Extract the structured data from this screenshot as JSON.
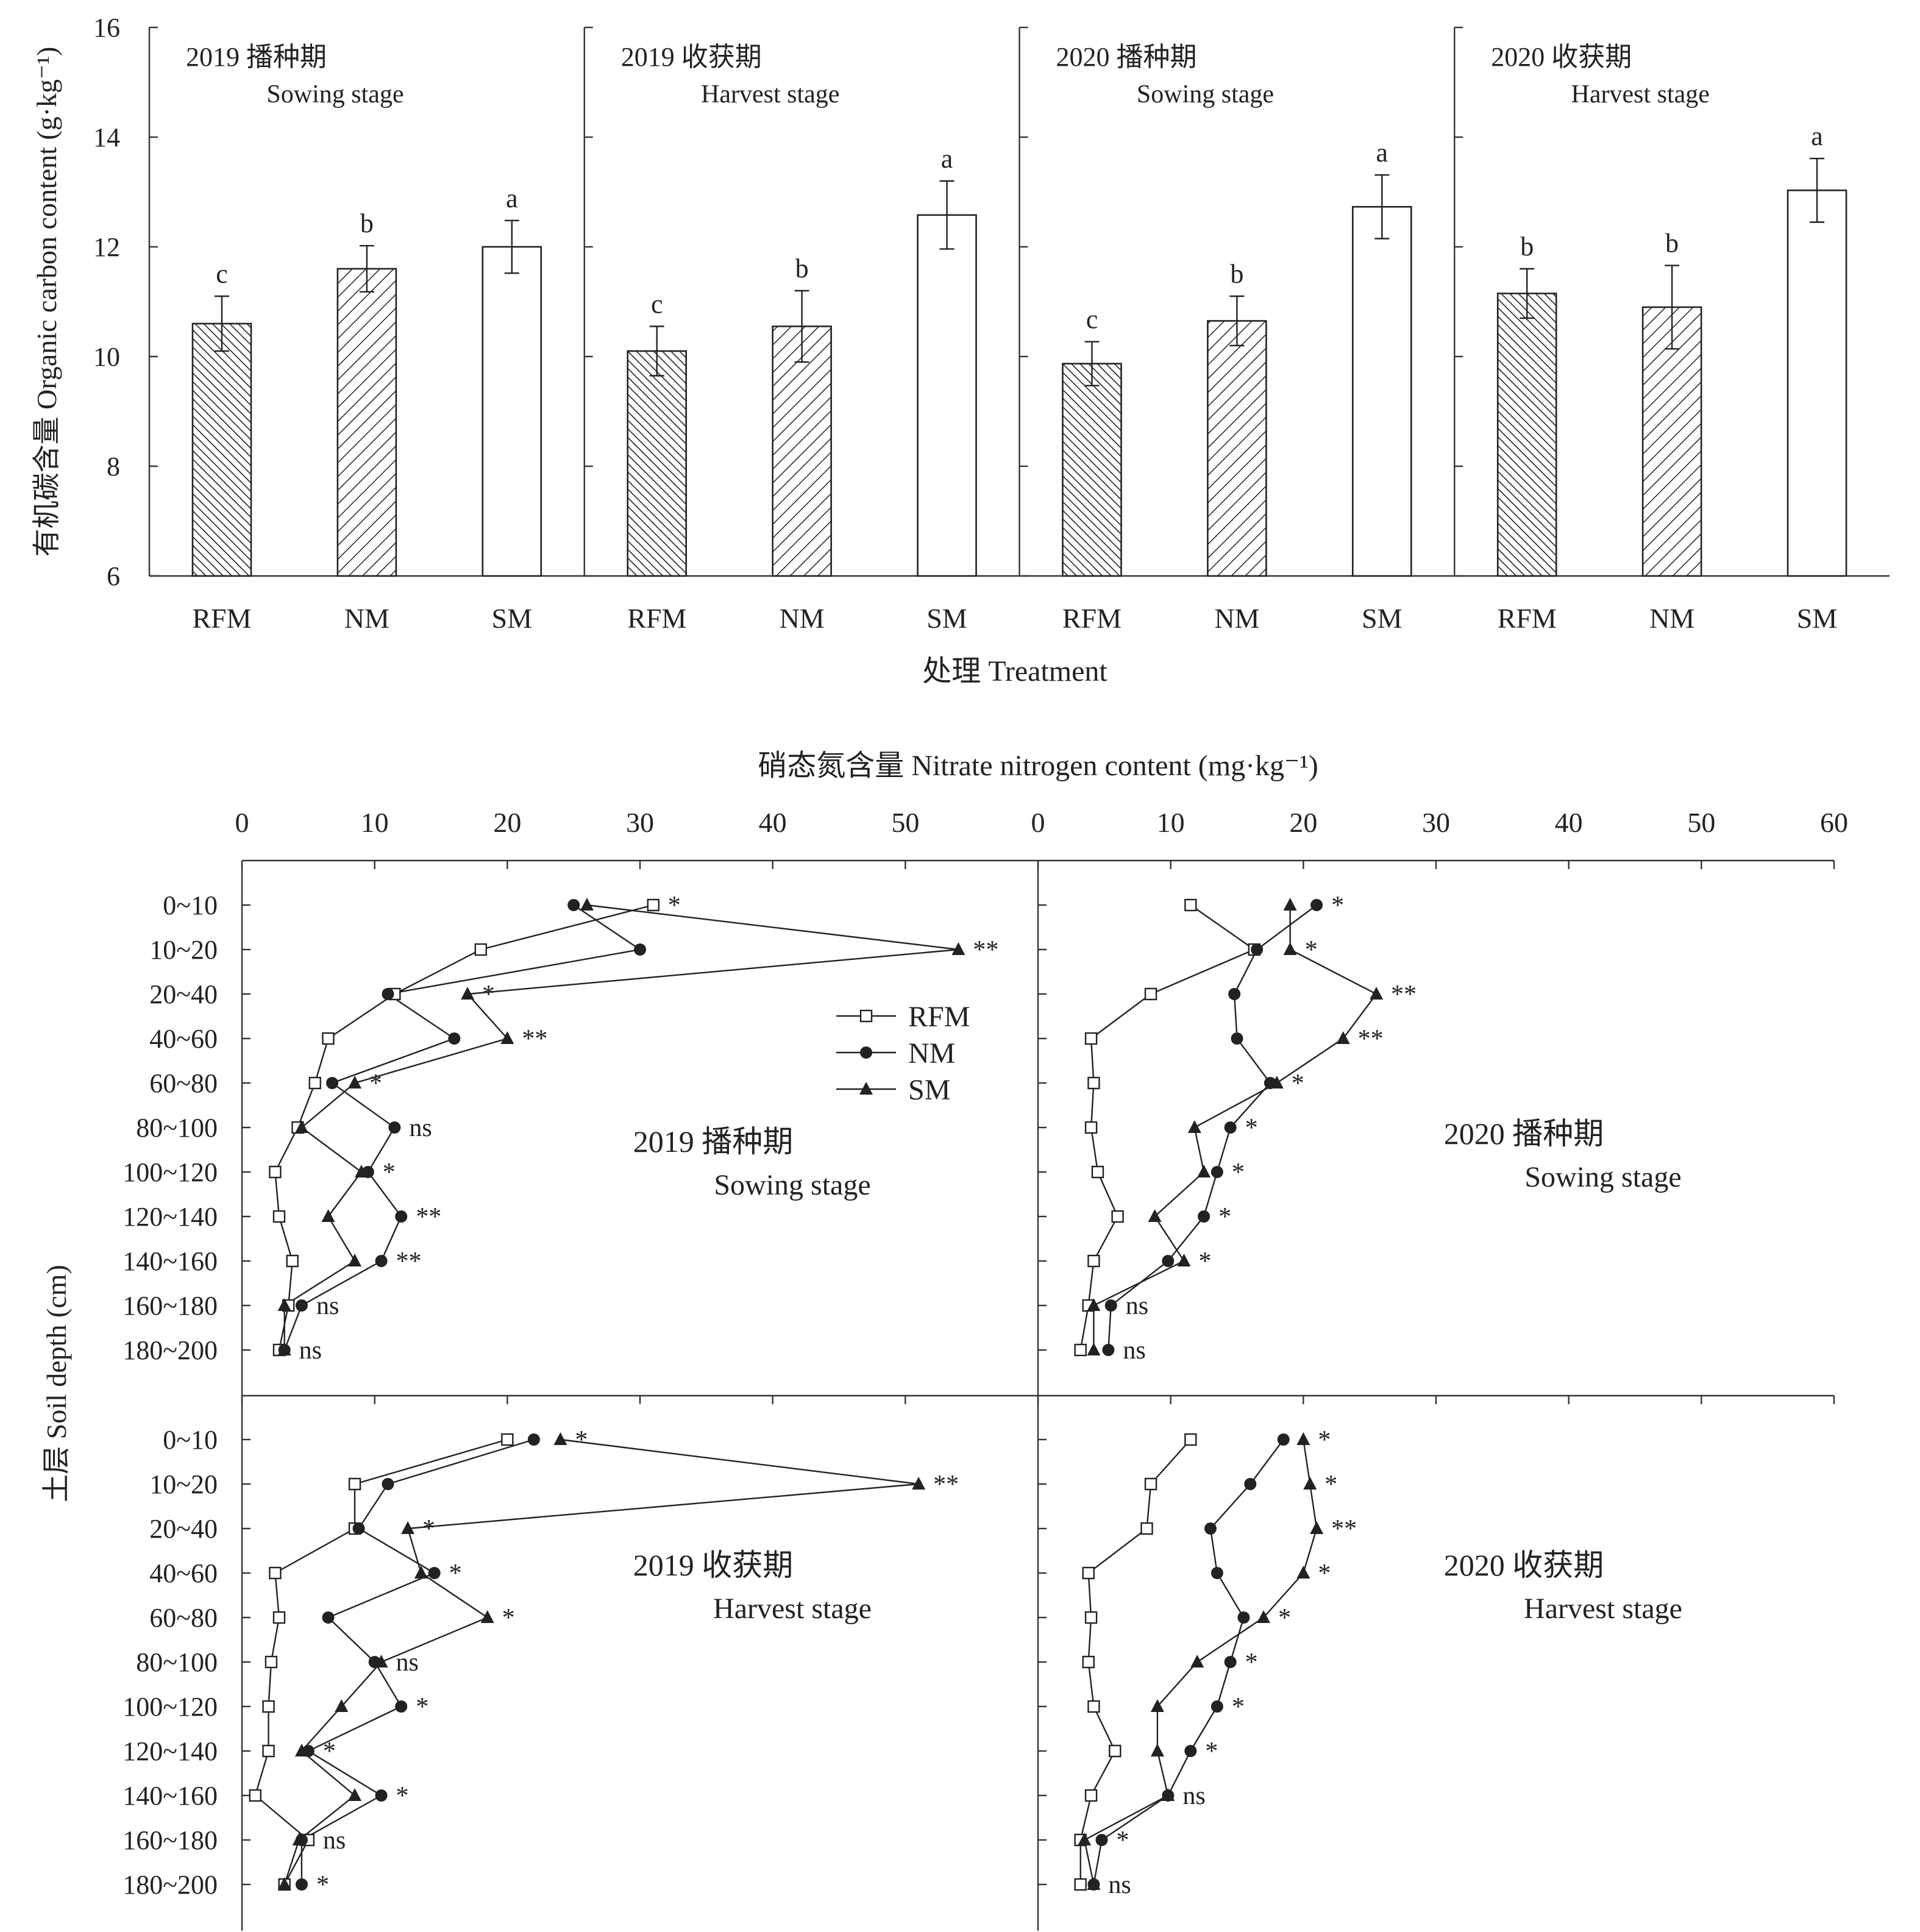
{
  "chart_data": [
    {
      "type": "bar",
      "ylabel": "有机碳含量 Organic carbon content (g·kg⁻¹)",
      "xlabel": "处理 Treatment",
      "ylim": [
        6,
        16
      ],
      "yticks": [
        6,
        8,
        10,
        12,
        14,
        16
      ],
      "categories": [
        "RFM",
        "NM",
        "SM"
      ],
      "panels": [
        {
          "title_cn": "2019 播种期",
          "title_en": "Sowing stage",
          "values": [
            10.6,
            11.6,
            12.0
          ],
          "errors": [
            0.5,
            0.42,
            0.48
          ],
          "letters": [
            "c",
            "b",
            "a"
          ]
        },
        {
          "title_cn": "2019 收获期",
          "title_en": "Harvest stage",
          "values": [
            10.1,
            10.55,
            12.58
          ],
          "errors": [
            0.45,
            0.65,
            0.62
          ],
          "letters": [
            "c",
            "b",
            "a"
          ]
        },
        {
          "title_cn": "2020 播种期",
          "title_en": "Sowing stage",
          "values": [
            9.87,
            10.65,
            12.73
          ],
          "errors": [
            0.4,
            0.45,
            0.58
          ],
          "letters": [
            "c",
            "b",
            "a"
          ]
        },
        {
          "title_cn": "2020 收获期",
          "title_en": "Harvest stage",
          "values": [
            11.15,
            10.9,
            13.03
          ],
          "errors": [
            0.45,
            0.76,
            0.58
          ],
          "letters": [
            "b",
            "b",
            "a"
          ]
        }
      ],
      "fills": {
        "RFM": "dense backward-diagonal hatch",
        "NM": "forward-diagonal hatch",
        "SM": "white"
      }
    },
    {
      "type": "line",
      "xlabel": "硝态氮含量 Nitrate nitrogen content (mg·kg⁻¹)",
      "ylabel": "土层 Soil depth (cm)",
      "depths": [
        "0~10",
        "10~20",
        "20~40",
        "40~60",
        "60~80",
        "80~100",
        "100~120",
        "120~140",
        "140~160",
        "160~180",
        "180~200"
      ],
      "xticks_left": [
        0,
        10,
        20,
        30,
        40,
        50
      ],
      "xticks_right": [
        0,
        10,
        20,
        30,
        40,
        50,
        60
      ],
      "xlim": [
        0,
        60
      ],
      "legend": [
        "RFM",
        "NM",
        "SM"
      ],
      "legend_location": "upper-right of top-left panel",
      "panels": [
        {
          "title_cn": "2019 播种期",
          "title_en": "Sowing stage",
          "RFM": [
            31,
            18,
            11.5,
            6.5,
            5.5,
            4.2,
            2.5,
            2.8,
            3.8,
            3.5,
            2.8
          ],
          "NM": [
            25,
            30,
            11,
            16,
            6.8,
            11.5,
            9.5,
            12,
            10.5,
            4.5,
            3.2
          ],
          "SM": [
            26,
            54,
            17,
            20,
            8.5,
            4.5,
            9,
            6.5,
            8.5,
            3.2,
            3.2
          ],
          "sig": [
            "*",
            "**",
            "*",
            "**",
            "*",
            "ns",
            "*",
            "**",
            "**",
            "ns",
            "ns"
          ]
        },
        {
          "title_cn": "2020 播种期",
          "title_en": "Sowing stage",
          "RFM": [
            11.5,
            16.3,
            8.5,
            4,
            4.2,
            4,
            4.5,
            6,
            4.2,
            3.8,
            3.2
          ],
          "NM": [
            21,
            16.5,
            14.8,
            15,
            17.5,
            14.5,
            13.5,
            12.5,
            9.8,
            5.5,
            5.3
          ],
          "SM": [
            19,
            19,
            25.5,
            23,
            18,
            11.8,
            12.5,
            8.8,
            11,
            4.2,
            4.2
          ],
          "sig": [
            "*",
            "*",
            "**",
            "**",
            "*",
            "*",
            "*",
            "*",
            "*",
            "ns",
            "ns"
          ]
        },
        {
          "title_cn": "2019 收获期",
          "title_en": "Harvest stage",
          "RFM": [
            20,
            8.5,
            8.5,
            2.5,
            2.8,
            2.2,
            2,
            2,
            1,
            5,
            3.2
          ],
          "NM": [
            22,
            11,
            8.8,
            14.5,
            6.5,
            10,
            12,
            5,
            10.5,
            4.5,
            4.5
          ],
          "SM": [
            24,
            51,
            12.5,
            13.5,
            18.5,
            10.5,
            7.5,
            4.5,
            8.5,
            4.3,
            3.2
          ],
          "sig": [
            "*",
            "**",
            "*",
            "*",
            "*",
            "ns",
            "*",
            "*",
            "*",
            "ns",
            "*"
          ]
        },
        {
          "title_cn": "2020 收获期",
          "title_en": "Harvest stage",
          "RFM": [
            11.5,
            8.5,
            8.2,
            3.8,
            4,
            3.8,
            4.2,
            5.8,
            4,
            3.2,
            3.2
          ],
          "NM": [
            18.5,
            16,
            13,
            13.5,
            15.5,
            14.5,
            13.5,
            11.5,
            9.8,
            4.8,
            4.2
          ],
          "SM": [
            20,
            20.5,
            21,
            20,
            17,
            12,
            9,
            9,
            9.8,
            3.5,
            4.2
          ],
          "sig": [
            "*",
            "*",
            "**",
            "*",
            "*",
            "*",
            "*",
            "*",
            "ns",
            "*",
            "ns"
          ]
        }
      ]
    }
  ]
}
